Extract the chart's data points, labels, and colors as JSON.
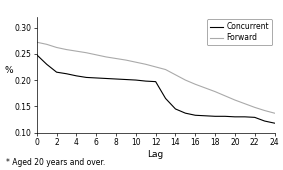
{
  "concurrent_x": [
    0,
    1,
    2,
    3,
    4,
    5,
    6,
    7,
    8,
    9,
    10,
    11,
    12,
    13,
    14,
    15,
    16,
    17,
    18,
    19,
    20,
    21,
    22,
    23,
    24
  ],
  "concurrent_y": [
    0.248,
    0.23,
    0.215,
    0.212,
    0.208,
    0.205,
    0.204,
    0.203,
    0.202,
    0.201,
    0.2,
    0.198,
    0.197,
    0.165,
    0.145,
    0.137,
    0.133,
    0.132,
    0.131,
    0.131,
    0.13,
    0.13,
    0.129,
    0.122,
    0.118
  ],
  "forward_x": [
    0,
    1,
    2,
    3,
    4,
    5,
    6,
    7,
    8,
    9,
    10,
    11,
    12,
    13,
    14,
    15,
    16,
    17,
    18,
    19,
    20,
    21,
    22,
    23,
    24
  ],
  "forward_y": [
    0.272,
    0.268,
    0.262,
    0.258,
    0.255,
    0.252,
    0.248,
    0.244,
    0.241,
    0.238,
    0.234,
    0.23,
    0.225,
    0.22,
    0.21,
    0.2,
    0.192,
    0.185,
    0.178,
    0.17,
    0.162,
    0.155,
    0.148,
    0.142,
    0.137
  ],
  "concurrent_color": "#000000",
  "forward_color": "#aaaaaa",
  "xlabel": "Lag",
  "ylabel": "%",
  "ylim": [
    0.1,
    0.32
  ],
  "xlim": [
    0,
    24
  ],
  "yticks": [
    0.1,
    0.15,
    0.2,
    0.25,
    0.3
  ],
  "xticks": [
    0,
    2,
    4,
    6,
    8,
    10,
    12,
    14,
    16,
    18,
    20,
    22,
    24
  ],
  "footnote": "* Aged 20 years and over.",
  "legend_concurrent": "Concurrent",
  "legend_forward": "Forward",
  "background_color": "#ffffff"
}
